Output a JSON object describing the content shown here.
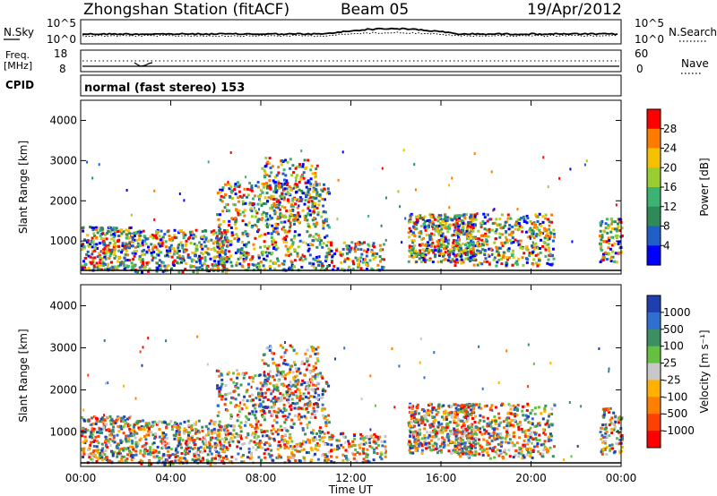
{
  "header": {
    "station": "Zhongshan Station (fitACF)",
    "beam": "Beam 05",
    "date": "19/Apr/2012"
  },
  "nsky_panel": {
    "left_label": "N.Sky",
    "left_ticks": [
      "10^5",
      "10^0"
    ],
    "right_label": "N.Search",
    "right_ticks": [
      "10^5",
      "10^0"
    ]
  },
  "freq_panel": {
    "left_label_1": "Freq.",
    "left_label_2": "[MHz]",
    "left_ticks": [
      "18",
      "8"
    ],
    "right_label": "Nave",
    "right_ticks": [
      "60",
      "0"
    ]
  },
  "cpid_panel": {
    "label": "CPID",
    "mode_text": "normal (fast stereo) 153"
  },
  "chart_data": [
    {
      "type": "heatmap",
      "name": "power",
      "ylabel": "Slant Range [km]",
      "xlabel": "Time UT",
      "xlim_hours": [
        0,
        24
      ],
      "ylim_km": [
        180,
        4500
      ],
      "y_ticks": [
        "4000",
        "3000",
        "2000",
        "1000"
      ],
      "x_ticks": [
        "00:00",
        "04:00",
        "08:00",
        "12:00",
        "16:00",
        "20:00",
        "00:00"
      ],
      "colorbar_label": "Power [dB]",
      "colorbar_ticks": [
        "28",
        "24",
        "20",
        "16",
        "12",
        "8",
        "4"
      ],
      "colorbar_colors": [
        "#ff0000",
        "#ff7a00",
        "#f5c000",
        "#9acd32",
        "#3cb371",
        "#2e8b57",
        "#1e5fc8",
        "#0000ff"
      ]
    },
    {
      "type": "heatmap",
      "name": "velocity",
      "ylabel": "Slant Range [km]",
      "xlabel": "Time UT",
      "xlim_hours": [
        0,
        24
      ],
      "ylim_km": [
        180,
        4500
      ],
      "y_ticks": [
        "4000",
        "3000",
        "2000",
        "1000"
      ],
      "x_ticks": [
        "00:00",
        "04:00",
        "08:00",
        "12:00",
        "16:00",
        "20:00",
        "00:00"
      ],
      "colorbar_label": "Velocity [m s⁻¹]",
      "colorbar_ticks": [
        "1000",
        "500",
        "100",
        "25",
        "-25",
        "-100",
        "-500",
        "-1000"
      ],
      "colorbar_colors": [
        "#1f3fb0",
        "#2f6fd0",
        "#3c8f60",
        "#66c040",
        "#c8c8c8",
        "#ffb000",
        "#ff8000",
        "#ff4000",
        "#ff0000"
      ]
    }
  ]
}
